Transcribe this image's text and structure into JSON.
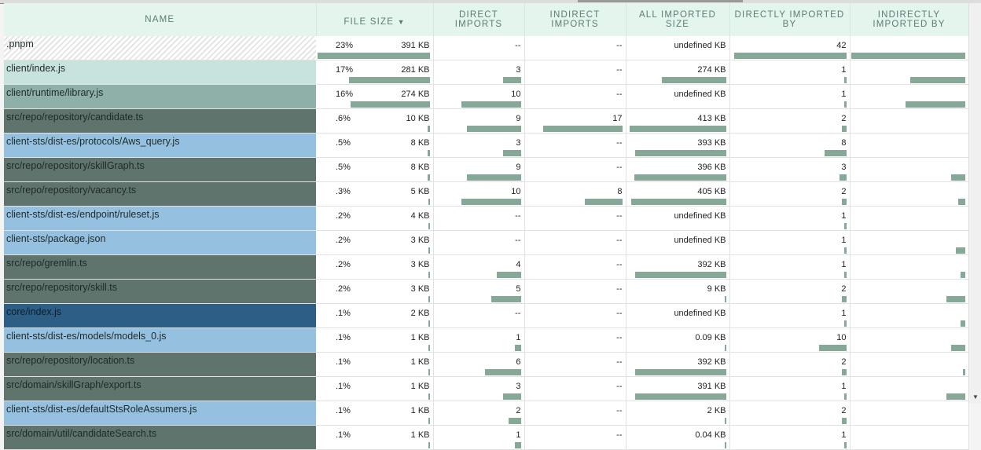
{
  "headers": {
    "name": "Name",
    "file_size": "File Size",
    "direct": "Direct Imports",
    "indirect": "Indirect Imports",
    "all_size": "All Imported Size",
    "direct_by": "Directly Imported By",
    "indirect_by": "Indirectly Imported By",
    "sort_icon": "chevron-down-icon"
  },
  "colors": {
    "bar": "#86a896",
    "hatched": "#e4e4e4",
    "light_teal": "#c8e2de",
    "mid_teal": "#8fb0a8",
    "dark": "#5f746d",
    "light_blue": "#95c0e0",
    "dark_blue": "#2d5f86"
  },
  "rows": [
    {
      "name": ".pnpm",
      "style": "hatched",
      "pct": "23%",
      "size": "391 KB",
      "size_bar": 1,
      "direct": "--",
      "direct_bar": 0,
      "indirect": "--",
      "indirect_bar": 0,
      "all": "undefined KB",
      "all_bar": 0,
      "by": "42",
      "by_bar": 1,
      "iby_bar": 1
    },
    {
      "name": "client/index.js",
      "style": "light_teal",
      "pct": "17%",
      "size": "281 KB",
      "size_bar": 0.72,
      "direct": "3",
      "direct_bar": 0.3,
      "indirect": "--",
      "indirect_bar": 0,
      "all": "274 KB",
      "all_bar": 0.66,
      "by": "1",
      "by_bar": 0.02,
      "iby_bar": 0.48
    },
    {
      "name": "client/runtime/library.js",
      "style": "mid_teal",
      "pct": "16%",
      "size": "274 KB",
      "size_bar": 0.7,
      "direct": "10",
      "direct_bar": 1,
      "indirect": "--",
      "indirect_bar": 0,
      "all": "undefined KB",
      "all_bar": 0,
      "by": "1",
      "by_bar": 0.02,
      "iby_bar": 0.52
    },
    {
      "name": "src/repo/repository/candidate.ts",
      "style": "dark",
      "pct": ".6%",
      "size": "10 KB",
      "size_bar": 0.02,
      "direct": "9",
      "direct_bar": 0.9,
      "indirect": "17",
      "indirect_bar": 1,
      "all": "413 KB",
      "all_bar": 1,
      "by": "2",
      "by_bar": 0.04,
      "iby_bar": 0
    },
    {
      "name": "client-sts/dist-es/protocols/Aws_query.js",
      "style": "light_blue",
      "pct": ".5%",
      "size": "8 KB",
      "size_bar": 0.02,
      "direct": "3",
      "direct_bar": 0.3,
      "indirect": "--",
      "indirect_bar": 0,
      "all": "393 KB",
      "all_bar": 0.94,
      "by": "8",
      "by_bar": 0.19,
      "iby_bar": 0
    },
    {
      "name": "src/repo/repository/skillGraph.ts",
      "style": "dark",
      "pct": ".5%",
      "size": "8 KB",
      "size_bar": 0.02,
      "direct": "9",
      "direct_bar": 0.9,
      "indirect": "--",
      "indirect_bar": 0,
      "all": "396 KB",
      "all_bar": 0.95,
      "by": "3",
      "by_bar": 0.06,
      "iby_bar": 0.12
    },
    {
      "name": "src/repo/repository/vacancy.ts",
      "style": "dark",
      "pct": ".3%",
      "size": "5 KB",
      "size_bar": 0.01,
      "direct": "10",
      "direct_bar": 1,
      "indirect": "8",
      "indirect_bar": 0.47,
      "all": "405 KB",
      "all_bar": 0.98,
      "by": "2",
      "by_bar": 0.04,
      "iby_bar": 0.06
    },
    {
      "name": "client-sts/dist-es/endpoint/ruleset.js",
      "style": "light_blue",
      "pct": ".2%",
      "size": "4 KB",
      "size_bar": 0.01,
      "direct": "--",
      "direct_bar": 0,
      "indirect": "--",
      "indirect_bar": 0,
      "all": "undefined KB",
      "all_bar": 0,
      "by": "1",
      "by_bar": 0.02,
      "iby_bar": 0
    },
    {
      "name": "client-sts/package.json",
      "style": "light_blue",
      "pct": ".2%",
      "size": "3 KB",
      "size_bar": 0.01,
      "direct": "--",
      "direct_bar": 0,
      "indirect": "--",
      "indirect_bar": 0,
      "all": "undefined KB",
      "all_bar": 0,
      "by": "1",
      "by_bar": 0.02,
      "iby_bar": 0.08
    },
    {
      "name": "src/repo/gremlin.ts",
      "style": "dark",
      "pct": ".2%",
      "size": "3 KB",
      "size_bar": 0.01,
      "direct": "4",
      "direct_bar": 0.4,
      "indirect": "--",
      "indirect_bar": 0,
      "all": "392 KB",
      "all_bar": 0.94,
      "by": "1",
      "by_bar": 0.02,
      "iby_bar": 0.04
    },
    {
      "name": "src/repo/repository/skill.ts",
      "style": "dark",
      "pct": ".2%",
      "size": "3 KB",
      "size_bar": 0.01,
      "direct": "5",
      "direct_bar": 0.5,
      "indirect": "--",
      "indirect_bar": 0,
      "all": "9 KB",
      "all_bar": 0.01,
      "by": "2",
      "by_bar": 0.04,
      "iby_bar": 0.16
    },
    {
      "name": "core/index.js",
      "style": "dark_blue",
      "pct": ".1%",
      "size": "2 KB",
      "size_bar": 0.01,
      "direct": "--",
      "direct_bar": 0,
      "indirect": "--",
      "indirect_bar": 0,
      "all": "undefined KB",
      "all_bar": 0,
      "by": "1",
      "by_bar": 0.02,
      "iby_bar": 0.04
    },
    {
      "name": "client-sts/dist-es/models/models_0.js",
      "style": "light_blue",
      "pct": ".1%",
      "size": "1 KB",
      "size_bar": 0.01,
      "direct": "1",
      "direct_bar": 0.1,
      "indirect": "--",
      "indirect_bar": 0,
      "all": "0.09 KB",
      "all_bar": 0.01,
      "by": "10",
      "by_bar": 0.24,
      "iby_bar": 0.12
    },
    {
      "name": "src/repo/repository/location.ts",
      "style": "dark",
      "pct": ".1%",
      "size": "1 KB",
      "size_bar": 0.01,
      "direct": "6",
      "direct_bar": 0.6,
      "indirect": "--",
      "indirect_bar": 0,
      "all": "392 KB",
      "all_bar": 0.94,
      "by": "2",
      "by_bar": 0.04,
      "iby_bar": 0.02
    },
    {
      "name": "src/domain/skillGraph/export.ts",
      "style": "dark",
      "pct": ".1%",
      "size": "1 KB",
      "size_bar": 0.01,
      "direct": "3",
      "direct_bar": 0.3,
      "indirect": "--",
      "indirect_bar": 0,
      "all": "391 KB",
      "all_bar": 0.94,
      "by": "1",
      "by_bar": 0.02,
      "iby_bar": 0.16
    },
    {
      "name": "client-sts/dist-es/defaultStsRoleAssumers.js",
      "style": "light_blue",
      "pct": ".1%",
      "size": "1 KB",
      "size_bar": 0.01,
      "direct": "2",
      "direct_bar": 0.2,
      "indirect": "--",
      "indirect_bar": 0,
      "all": "2 KB",
      "all_bar": 0.01,
      "by": "2",
      "by_bar": 0.04,
      "iby_bar": 0
    },
    {
      "name": "src/domain/util/candidateSearch.ts",
      "style": "dark",
      "pct": ".1%",
      "size": "1 KB",
      "size_bar": 0.01,
      "direct": "1",
      "direct_bar": 0.1,
      "indirect": "--",
      "indirect_bar": 0,
      "all": "0.04 KB",
      "all_bar": 0.01,
      "by": "1",
      "by_bar": 0.02,
      "iby_bar": 0
    }
  ]
}
